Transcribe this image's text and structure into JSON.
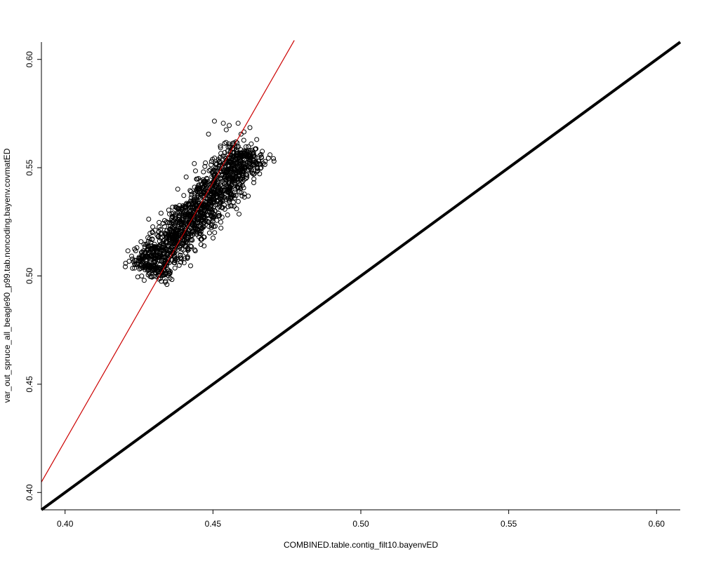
{
  "chart_data": {
    "type": "scatter",
    "xlabel": "COMBINED.table.contig_filt10.bayenvED",
    "ylabel": "var_out_spruce_all_beagle90_p99.tab.noncoding.bayenv.covmatED",
    "xlim": [
      0.392,
      0.608
    ],
    "ylim": [
      0.392,
      0.608
    ],
    "x_ticks": [
      0.4,
      0.45,
      0.5,
      0.55,
      0.6
    ],
    "y_ticks": [
      0.4,
      0.45,
      0.5,
      0.55,
      0.6
    ],
    "x_tick_labels": [
      "0.40",
      "0.45",
      "0.50",
      "0.55",
      "0.60"
    ],
    "y_tick_labels": [
      "0.40",
      "0.45",
      "0.50",
      "0.55",
      "0.60"
    ],
    "grid": false,
    "point_cloud": {
      "marker": "open-circle",
      "color": "#000000",
      "approx_count": 1500,
      "trend": {
        "x": [
          0.4275,
          0.4625
        ],
        "y": [
          0.5015,
          0.5585
        ]
      },
      "spread_perpendicular": 0.0075,
      "outliers": [
        {
          "x": 0.4505,
          "y": 0.5715
        },
        {
          "x": 0.4535,
          "y": 0.5705
        },
        {
          "x": 0.4555,
          "y": 0.5695
        },
        {
          "x": 0.4585,
          "y": 0.5705
        },
        {
          "x": 0.4605,
          "y": 0.5665
        },
        {
          "x": 0.4625,
          "y": 0.5685
        },
        {
          "x": 0.4648,
          "y": 0.563
        },
        {
          "x": 0.4595,
          "y": 0.5655
        },
        {
          "x": 0.4545,
          "y": 0.5675
        },
        {
          "x": 0.4485,
          "y": 0.5655
        },
        {
          "x": 0.429,
          "y": 0.5155
        },
        {
          "x": 0.427,
          "y": 0.5135
        },
        {
          "x": 0.4315,
          "y": 0.518
        },
        {
          "x": 0.4575,
          "y": 0.54
        },
        {
          "x": 0.4615,
          "y": 0.5465
        }
      ]
    },
    "lines": [
      {
        "name": "",
        "color": "#cc0000",
        "width": 1.2,
        "x": [
          0.392,
          0.4775
        ],
        "y": [
          0.4048,
          0.6088
        ]
      },
      {
        "name": "",
        "color": "#000000",
        "width": 4,
        "x": [
          0.392,
          0.608
        ],
        "y": [
          0.392,
          0.608
        ]
      }
    ]
  }
}
